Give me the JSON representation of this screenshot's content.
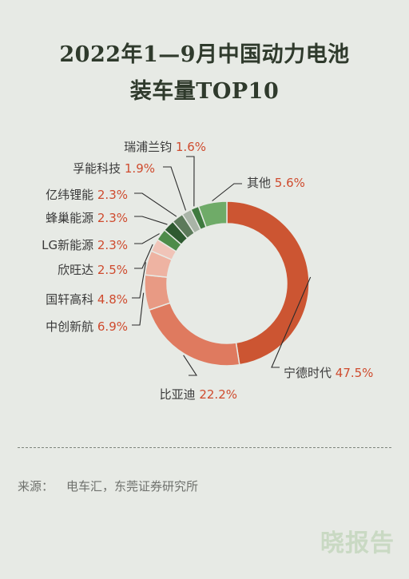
{
  "chart_data": {
    "type": "pie",
    "title": "2022年1—9月中国动力电池装车量TOP10",
    "title_lines": [
      "2022年1—9月中国动力电池",
      "装车量TOP10"
    ],
    "labels": [
      "宁德时代",
      "比亚迪",
      "中创新航",
      "国轩高科",
      "欣旺达",
      "LG新能源",
      "蜂巢能源",
      "亿纬锂能",
      "孚能科技",
      "瑞浦兰钧",
      "其他"
    ],
    "values": [
      47.5,
      22.2,
      6.9,
      4.8,
      2.5,
      2.3,
      2.3,
      2.3,
      1.9,
      1.6,
      5.6
    ],
    "value_labels": [
      "47.5%",
      "22.2%",
      "6.9%",
      "4.8%",
      "2.5%",
      "2.3%",
      "2.3%",
      "2.3%",
      "1.9%",
      "1.6%",
      "5.6%"
    ],
    "unit": "%",
    "style": "donut",
    "colors": [
      "#cc5532",
      "#df7a5f",
      "#e89a84",
      "#eeb3a2",
      "#f0c4b8",
      "#4e8c4a",
      "#2e5a30",
      "#5c7a5a",
      "#a9b4a7",
      "#3f7a3f",
      "#6fab68"
    ]
  },
  "source": {
    "label": "来源：",
    "text": "电车汇，东莞证券研究所"
  },
  "watermark": "晓报告"
}
